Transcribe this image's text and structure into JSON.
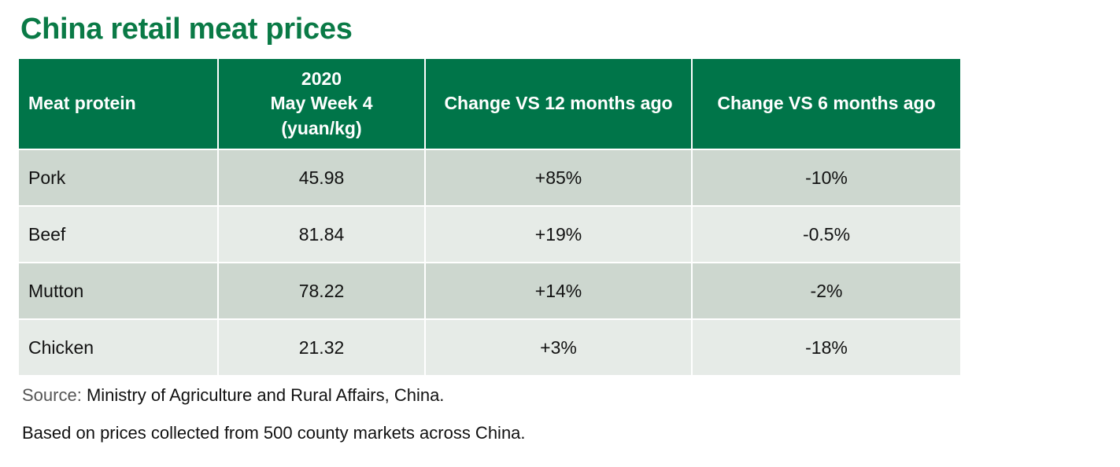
{
  "title": "China retail meat prices",
  "chart_data": {
    "type": "table",
    "title": "China retail meat prices",
    "columns": [
      {
        "lines": [
          "Meat protein"
        ]
      },
      {
        "lines": [
          "2020",
          "May Week 4",
          "(yuan/kg)"
        ]
      },
      {
        "lines": [
          "Change VS 12 months ago"
        ]
      },
      {
        "lines": [
          "Change VS 6 months ago"
        ]
      }
    ],
    "rows": [
      {
        "meat": "Pork",
        "price": "45.98",
        "change_12m": "+85%",
        "change_6m": "-10%"
      },
      {
        "meat": "Beef",
        "price": "81.84",
        "change_12m": "+19%",
        "change_6m": "-0.5%"
      },
      {
        "meat": "Mutton",
        "price": "78.22",
        "change_12m": "+14%",
        "change_6m": "-2%"
      },
      {
        "meat": "Chicken",
        "price": "21.32",
        "change_12m": "+3%",
        "change_6m": "-18%"
      }
    ]
  },
  "source": {
    "label": "Source:",
    "text": "Ministry of Agriculture and Rural Affairs, China."
  },
  "note": "Based on prices collected from 500 county markets across China.",
  "colors": {
    "title": "#0a7a46",
    "header_bg": "#007549",
    "row_dark": "#cdd7cf",
    "row_light": "#e6ebe7"
  }
}
